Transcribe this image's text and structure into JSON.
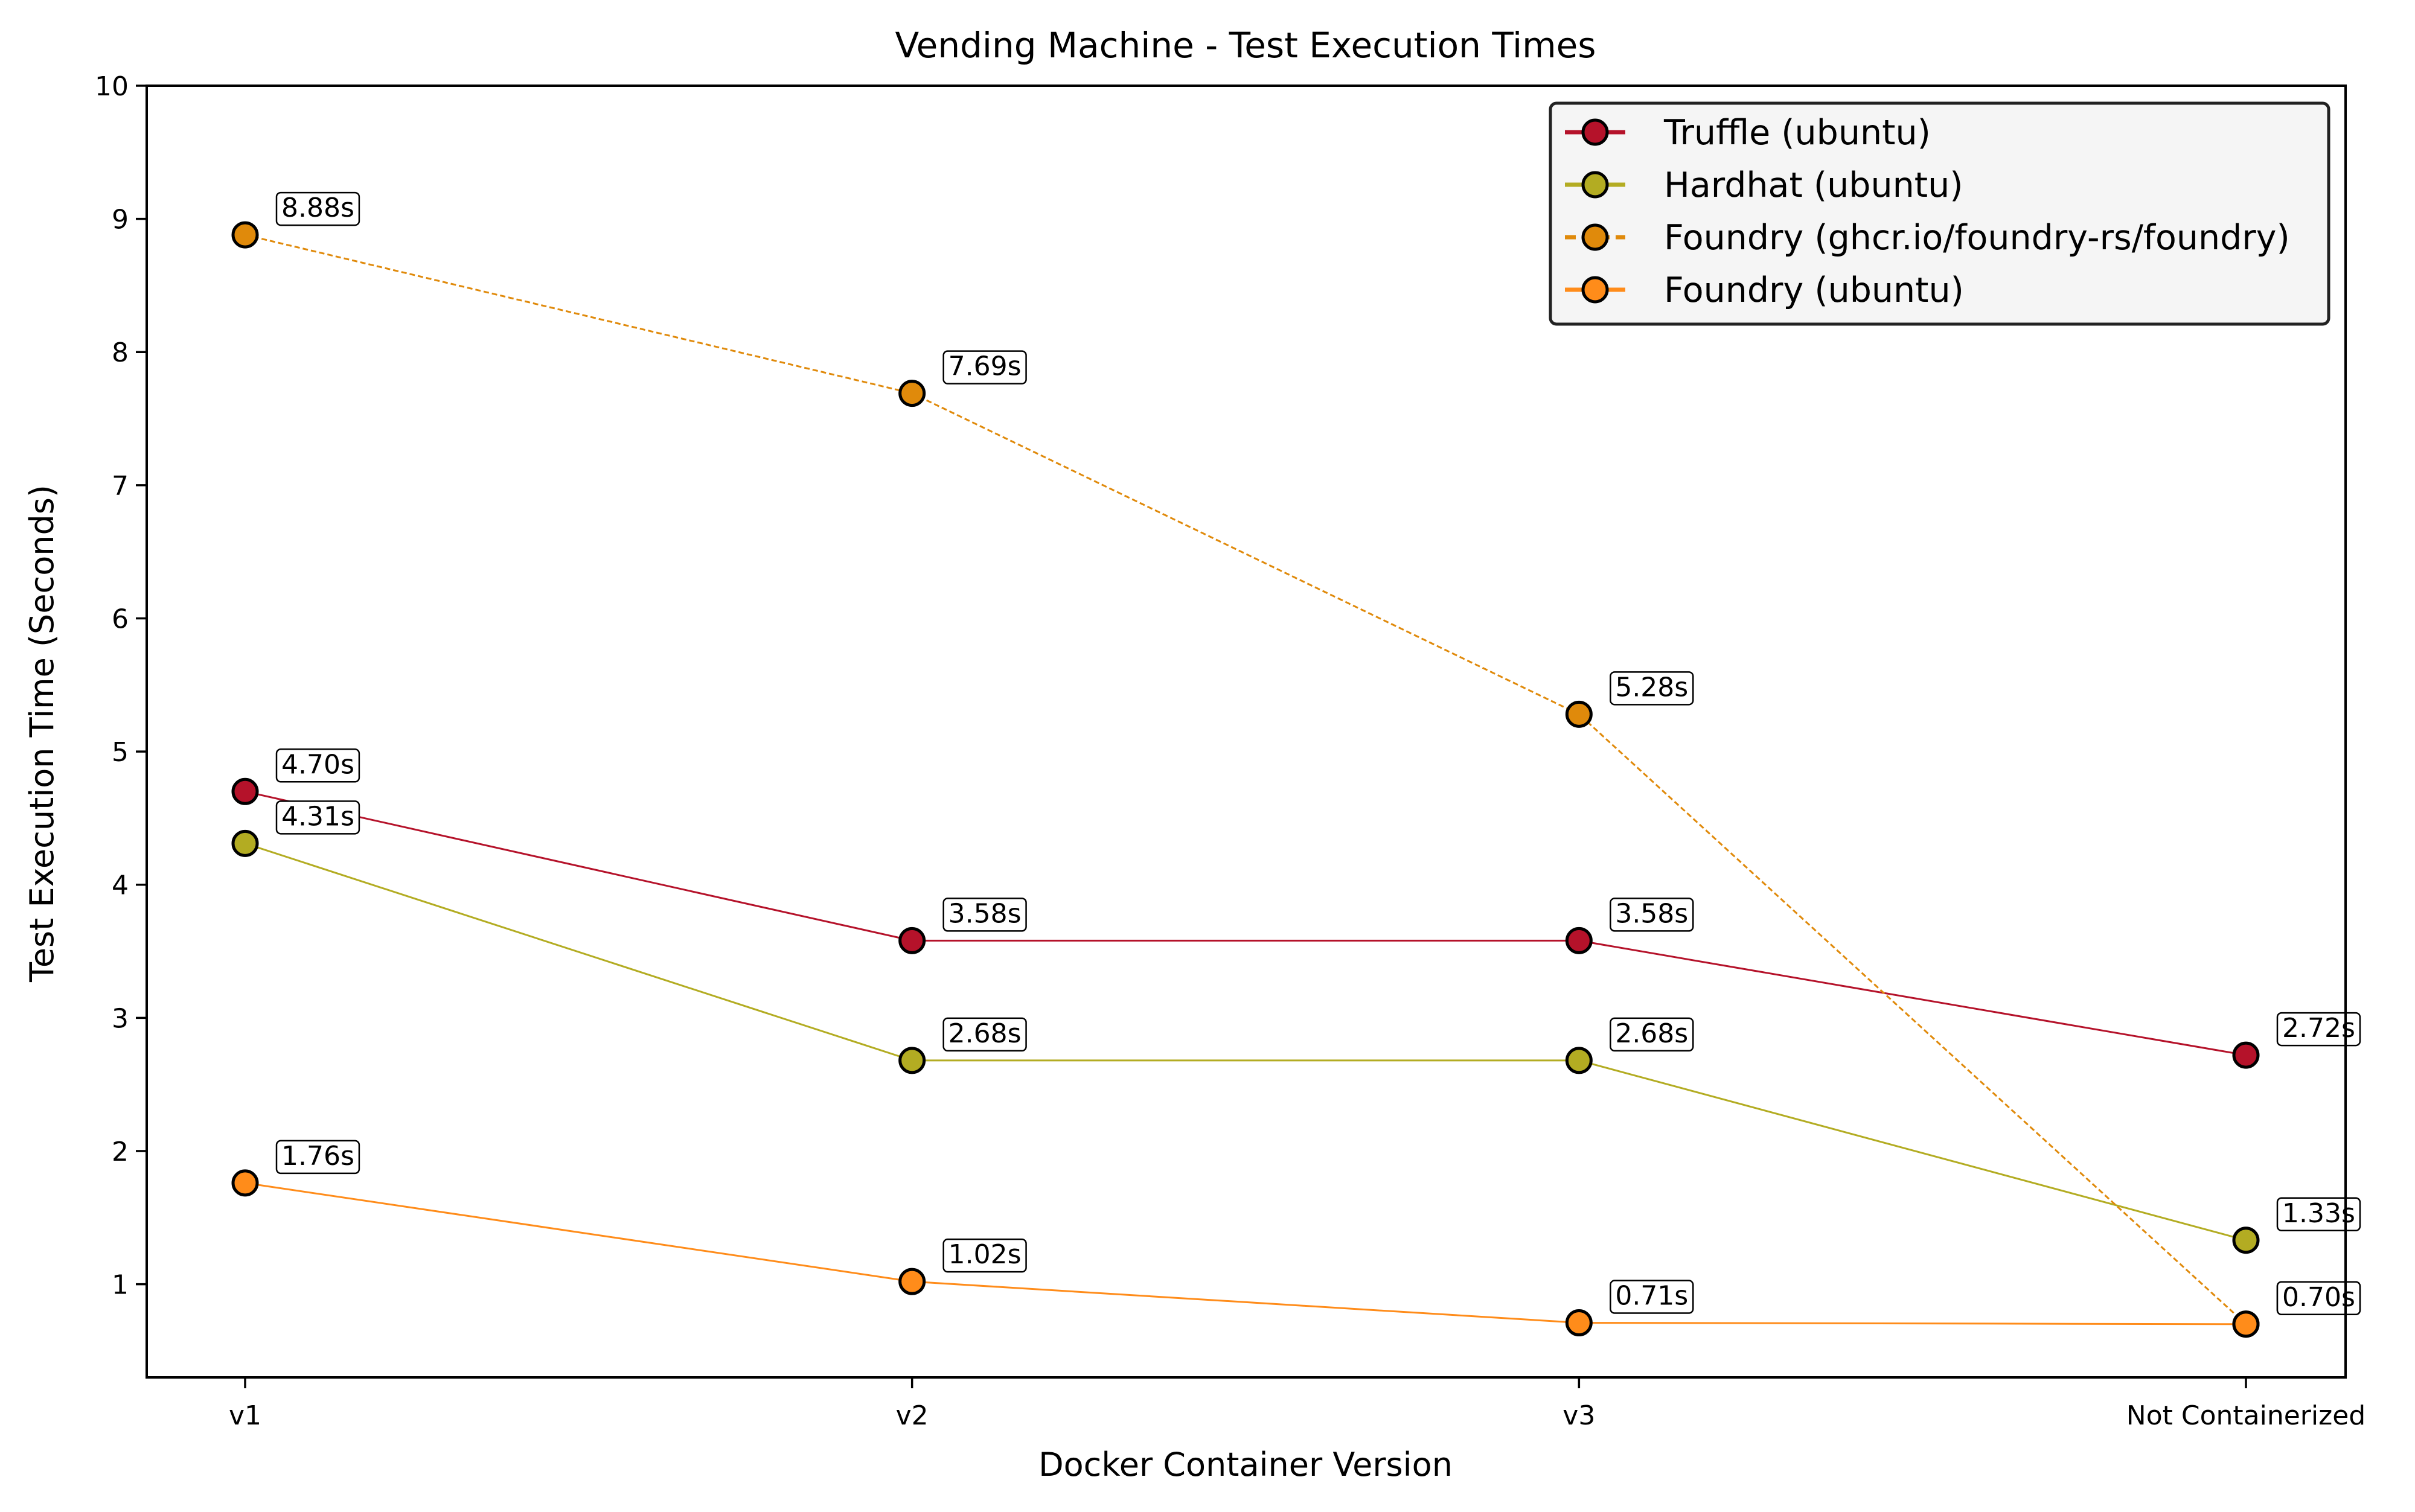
{
  "chart_data": {
    "type": "line",
    "title": "Vending Machine - Test Execution Times",
    "xlabel": "Docker Container Version",
    "ylabel": "Test Execution Time (Seconds)",
    "categories": [
      "v1",
      "v2",
      "v3",
      "Not Containerized"
    ],
    "ylim": [
      0.3,
      10
    ],
    "yticks": [
      1,
      2,
      3,
      4,
      5,
      6,
      7,
      8,
      9,
      10
    ],
    "grid": false,
    "legend_position": "top-right",
    "series": [
      {
        "name": "Truffle (ubuntu)",
        "color": "#b5122a",
        "line_style": "solid",
        "values": [
          4.7,
          3.58,
          3.58,
          2.72
        ],
        "labels": [
          "4.70s",
          "3.58s",
          "3.58s",
          "2.72s"
        ]
      },
      {
        "name": "Hardhat (ubuntu)",
        "color": "#b3ac22",
        "line_style": "solid",
        "values": [
          4.31,
          2.68,
          2.68,
          1.33
        ],
        "labels": [
          "4.31s",
          "2.68s",
          "2.68s",
          "1.33s"
        ]
      },
      {
        "name": "Foundry (ghcr.io/foundry-rs/foundry)",
        "color": "#e08a0b",
        "line_style": "dotted",
        "values": [
          8.88,
          7.69,
          5.28,
          0.7
        ],
        "labels": [
          "8.88s",
          "7.69s",
          "5.28s",
          "0.70s"
        ]
      },
      {
        "name": "Foundry (ubuntu)",
        "color": "#ff8c1a",
        "line_style": "solid",
        "values": [
          1.76,
          1.02,
          0.71,
          0.7
        ],
        "labels": [
          "1.76s",
          "1.02s",
          "0.71s",
          "0.70s"
        ]
      }
    ]
  }
}
